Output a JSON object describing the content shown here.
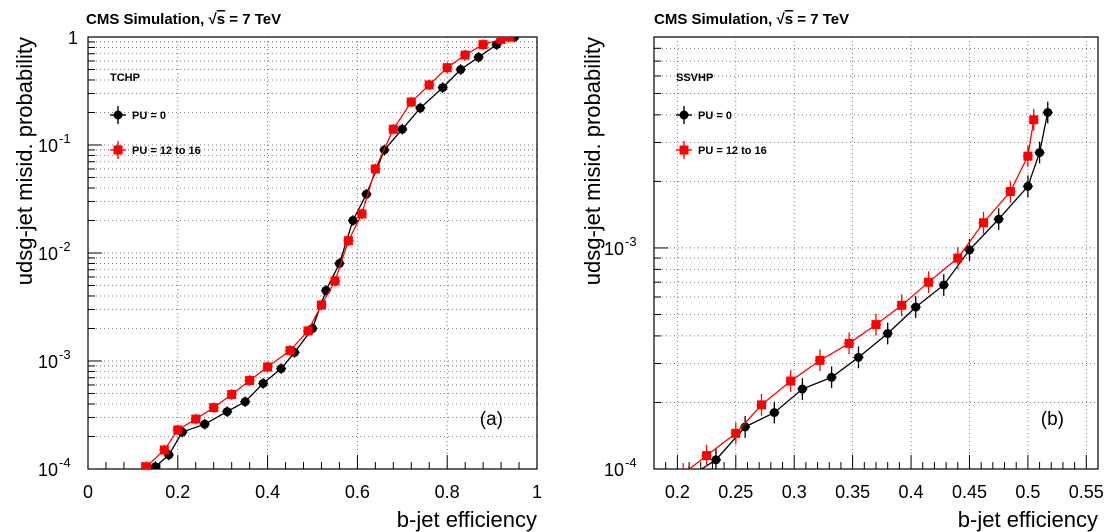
{
  "chart_data": [
    {
      "type": "line",
      "title": "CMS Simulation, √s = 7 TeV",
      "title_parts": {
        "lead": "CMS Simulation, ",
        "root": "√",
        "rootarg": "s",
        "tail": " = 7 TeV"
      },
      "tagger": "TCHP",
      "panel_label": "(a)",
      "xlabel": "b-jet efficiency",
      "ylabel": "udsg-jet misid. probability",
      "xlim": [
        0,
        1
      ],
      "ylim": [
        0.0001,
        1
      ],
      "yscale": "log",
      "grid": true,
      "legend_position": "top-left",
      "x_tick_labels": [
        "0",
        "0.2",
        "0.4",
        "0.6",
        "0.8",
        "1"
      ],
      "y_tick_labels": [
        {
          "value": 0.0001,
          "base": "10",
          "exp": "-4"
        },
        {
          "value": 0.001,
          "base": "10",
          "exp": "-3"
        },
        {
          "value": 0.01,
          "base": "10",
          "exp": "-2"
        },
        {
          "value": 0.1,
          "base": "10",
          "exp": "-1"
        },
        {
          "value": 1,
          "text": "1"
        }
      ],
      "series": [
        {
          "name": "PU = 0",
          "color": "#000000",
          "marker": "circle",
          "x": [
            0.15,
            0.18,
            0.21,
            0.26,
            0.31,
            0.35,
            0.39,
            0.43,
            0.46,
            0.5,
            0.53,
            0.56,
            0.59,
            0.62,
            0.66,
            0.7,
            0.74,
            0.79,
            0.83,
            0.87,
            0.91,
            0.95
          ],
          "y": [
            0.000105,
            0.000135,
            0.00022,
            0.00026,
            0.00034,
            0.00042,
            0.00062,
            0.00085,
            0.0012,
            0.002,
            0.0045,
            0.008,
            0.02,
            0.035,
            0.09,
            0.14,
            0.22,
            0.34,
            0.5,
            0.65,
            0.85,
            1.0
          ]
        },
        {
          "name": "PU = 12 to 16",
          "color": "#ff0000",
          "marker": "square",
          "x": [
            0.13,
            0.17,
            0.2,
            0.24,
            0.28,
            0.32,
            0.36,
            0.4,
            0.45,
            0.49,
            0.52,
            0.55,
            0.58,
            0.61,
            0.64,
            0.68,
            0.72,
            0.76,
            0.8,
            0.84,
            0.88,
            0.92,
            0.94
          ],
          "y": [
            0.000105,
            0.00015,
            0.00023,
            0.00029,
            0.00037,
            0.00049,
            0.00066,
            0.00088,
            0.00125,
            0.0019,
            0.0033,
            0.0055,
            0.013,
            0.023,
            0.06,
            0.14,
            0.25,
            0.36,
            0.52,
            0.68,
            0.85,
            0.95,
            1.0
          ]
        }
      ]
    },
    {
      "type": "line",
      "title": "CMS Simulation, √s = 7 TeV",
      "title_parts": {
        "lead": "CMS Simulation, ",
        "root": "√",
        "rootarg": "s",
        "tail": " = 7 TeV"
      },
      "tagger": "SSVHP",
      "panel_label": "(b)",
      "xlabel": "b-jet efficiency",
      "ylabel": "udsg-jet misid. probability",
      "xlim": [
        0.18,
        0.56
      ],
      "ylim": [
        0.0001,
        0.009
      ],
      "yscale": "log",
      "grid": true,
      "legend_position": "top-left",
      "x_tick_labels": [
        "0.2",
        "0.25",
        "0.3",
        "0.35",
        "0.4",
        "0.45",
        "0.5",
        "0.55"
      ],
      "y_tick_labels": [
        {
          "value": 0.0001,
          "base": "10",
          "exp": "-4"
        },
        {
          "value": 0.001,
          "base": "10",
          "exp": "-3"
        }
      ],
      "series": [
        {
          "name": "PU = 0",
          "color": "#000000",
          "marker": "circle",
          "x": [
            0.21,
            0.233,
            0.258,
            0.283,
            0.307,
            0.332,
            0.355,
            0.38,
            0.404,
            0.428,
            0.45,
            0.475,
            0.5,
            0.51,
            0.517
          ],
          "y": [
            9.2e-05,
            0.00011,
            0.000155,
            0.00018,
            0.00023,
            0.00026,
            0.00032,
            0.00041,
            0.00054,
            0.00068,
            0.00098,
            0.00135,
            0.0019,
            0.0027,
            0.0041
          ]
        },
        {
          "name": "PU = 12 to 16",
          "color": "#ff0000",
          "marker": "square",
          "x": [
            0.205,
            0.225,
            0.25,
            0.272,
            0.297,
            0.322,
            0.347,
            0.37,
            0.392,
            0.415,
            0.44,
            0.462,
            0.485,
            0.5,
            0.505
          ],
          "y": [
            9.5e-05,
            0.000115,
            0.000145,
            0.000195,
            0.00025,
            0.00031,
            0.00037,
            0.00045,
            0.00055,
            0.0007,
            0.0009,
            0.0013,
            0.0018,
            0.0026,
            0.0038
          ]
        }
      ]
    }
  ]
}
